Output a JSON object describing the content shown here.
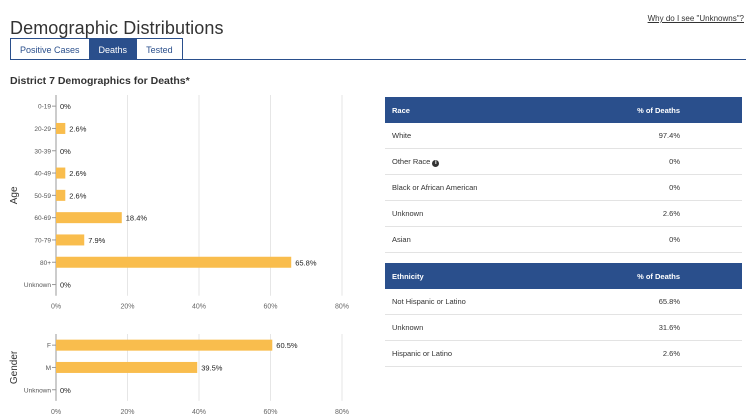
{
  "header": {
    "title": "Demographic Distributions",
    "help_link": "Why do I see \"Unknowns\"?"
  },
  "tabs": [
    {
      "label": "Positive Cases",
      "active": false
    },
    {
      "label": "Deaths",
      "active": true
    },
    {
      "label": "Tested",
      "active": false
    }
  ],
  "section": {
    "title": "District 7 Demographics for Deaths*"
  },
  "colors": {
    "accent": "#2a4f8c",
    "bar": "#f9bd4d"
  },
  "chart_data": [
    {
      "type": "bar",
      "orientation": "horizontal",
      "ylabel": "Age",
      "categories": [
        "0-19",
        "20-29",
        "30-39",
        "40-49",
        "50-59",
        "60-69",
        "70-79",
        "80+",
        "Unknown"
      ],
      "values": [
        0,
        2.6,
        0,
        2.6,
        2.6,
        18.4,
        7.9,
        65.8,
        0
      ],
      "value_labels": [
        "0%",
        "2.6%",
        "0%",
        "2.6%",
        "2.6%",
        "18.4%",
        "7.9%",
        "65.8%",
        "0%"
      ],
      "xticks": [
        "0%",
        "20%",
        "40%",
        "60%",
        "80%"
      ],
      "xlim": [
        0,
        80
      ],
      "grid": true
    },
    {
      "type": "bar",
      "orientation": "horizontal",
      "ylabel": "Gender",
      "categories": [
        "F",
        "M",
        "Unknown"
      ],
      "values": [
        60.5,
        39.5,
        0
      ],
      "value_labels": [
        "60.5%",
        "39.5%",
        "0%"
      ],
      "xticks": [
        "0%",
        "20%",
        "40%",
        "60%",
        "80%"
      ],
      "xlim": [
        0,
        80
      ],
      "grid": true
    }
  ],
  "race_table": {
    "headers": [
      "Race",
      "% of Deaths"
    ],
    "rows": [
      {
        "label": "White",
        "value": "97.4%"
      },
      {
        "label": "Other Race",
        "value": "0%",
        "info": "i"
      },
      {
        "label": "Black or African American",
        "value": "0%"
      },
      {
        "label": "Unknown",
        "value": "2.6%"
      },
      {
        "label": "Asian",
        "value": "0%"
      }
    ]
  },
  "ethnicity_table": {
    "headers": [
      "Ethnicity",
      "% of Deaths"
    ],
    "rows": [
      {
        "label": "Not Hispanic or Latino",
        "value": "65.8%"
      },
      {
        "label": "Unknown",
        "value": "31.6%"
      },
      {
        "label": "Hispanic or Latino",
        "value": "2.6%"
      }
    ]
  }
}
